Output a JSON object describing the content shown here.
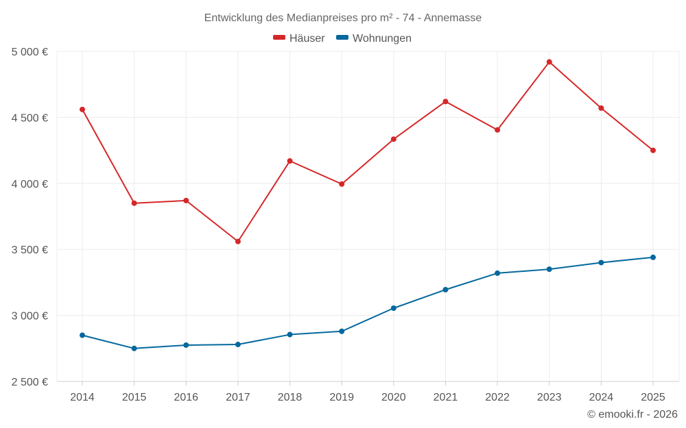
{
  "chart_data": {
    "type": "line",
    "title": "Entwicklung des Medianpreises pro m² - 74 - Annemasse",
    "xlabel": "",
    "ylabel": "",
    "categories": [
      "2014",
      "2015",
      "2016",
      "2017",
      "2018",
      "2019",
      "2020",
      "2021",
      "2022",
      "2023",
      "2024",
      "2025"
    ],
    "ylim": [
      2500,
      5000
    ],
    "yticks": [
      2500,
      3000,
      3500,
      4000,
      4500,
      5000
    ],
    "ytick_labels": [
      "2 500 €",
      "3 000 €",
      "3 500 €",
      "4 000 €",
      "4 500 €",
      "5 000 €"
    ],
    "grid": true,
    "legend_position": "top-center",
    "series": [
      {
        "name": "Häuser",
        "color": "#d62728",
        "values": [
          4560,
          3850,
          3870,
          3560,
          4170,
          3995,
          4335,
          4620,
          4405,
          4920,
          4570,
          4250
        ]
      },
      {
        "name": "Wohnungen",
        "color": "#04689e",
        "values": [
          2850,
          2750,
          2775,
          2780,
          2855,
          2880,
          3055,
          3195,
          3320,
          3350,
          3400,
          3440
        ]
      }
    ]
  },
  "credit": "© emooki.fr - 2026"
}
